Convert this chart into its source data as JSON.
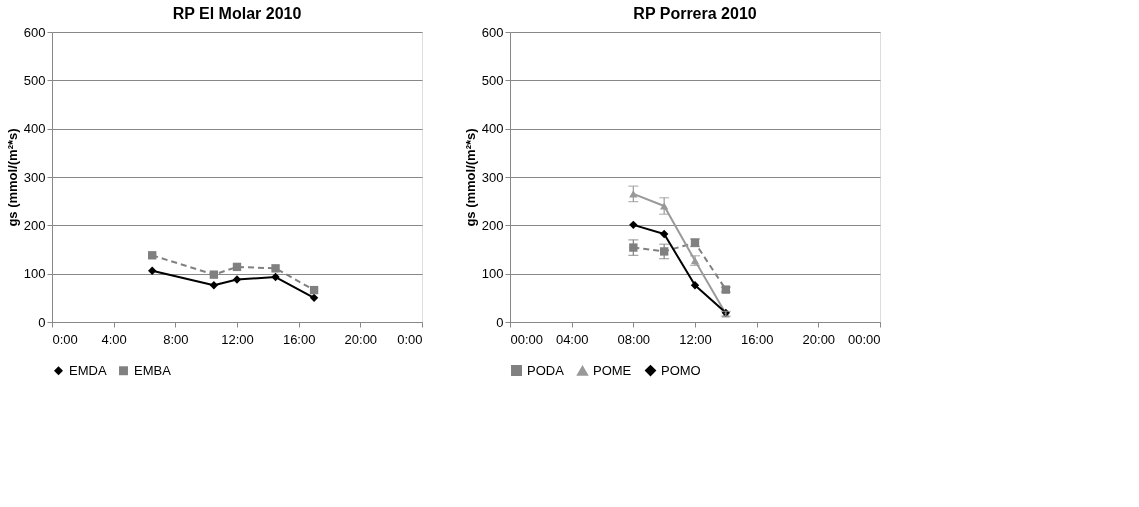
{
  "chart_data": [
    {
      "type": "line",
      "title": "RP El Molar 2010",
      "ylabel": "gs (mmol/(m²*s)",
      "xlim": [
        0,
        24
      ],
      "ylim": [
        0,
        600
      ],
      "xticks": [
        {
          "value": 0,
          "label": "0:00"
        },
        {
          "value": 4,
          "label": "4:00"
        },
        {
          "value": 8,
          "label": "8:00"
        },
        {
          "value": 12,
          "label": "12:00"
        },
        {
          "value": 16,
          "label": "16:00"
        },
        {
          "value": 20,
          "label": "20:00"
        },
        {
          "value": 24,
          "label": "0:00"
        }
      ],
      "yticks": [
        0,
        100,
        200,
        300,
        400,
        500,
        600
      ],
      "grid": "y",
      "legend": "bottom",
      "series": [
        {
          "name": "EMDA",
          "color": "#000000",
          "marker": "diamond",
          "line_style": "solid",
          "x": [
            6.5,
            10.5,
            12,
            14.5,
            17
          ],
          "values": [
            106,
            76,
            88,
            93,
            50
          ]
        },
        {
          "name": "EMBA",
          "color": "#808080",
          "marker": "square",
          "line_style": "dashed",
          "x": [
            6.5,
            10.5,
            12,
            14.5,
            17
          ],
          "values": [
            138,
            98,
            114,
            111,
            66
          ]
        }
      ]
    },
    {
      "type": "line",
      "title": "RP Porrera 2010",
      "ylabel": "gs (mmol/(m²*s)",
      "xlim": [
        0,
        24
      ],
      "ylim": [
        0,
        600
      ],
      "xticks": [
        {
          "value": 0,
          "label": "00:00"
        },
        {
          "value": 4,
          "label": "04:00"
        },
        {
          "value": 8,
          "label": "08:00"
        },
        {
          "value": 12,
          "label": "12:00"
        },
        {
          "value": 16,
          "label": "16:00"
        },
        {
          "value": 20,
          "label": "20:00"
        },
        {
          "value": 24,
          "label": "00:00"
        }
      ],
      "yticks": [
        0,
        100,
        200,
        300,
        400,
        500,
        600
      ],
      "grid": "y",
      "legend": "bottom",
      "series": [
        {
          "name": "PODA",
          "color": "#808080",
          "marker": "square",
          "line_style": "dashed",
          "x": [
            8,
            10,
            12,
            14
          ],
          "values": [
            154,
            146,
            164,
            67
          ],
          "errors": [
            16,
            15,
            8,
            5
          ]
        },
        {
          "name": "POME",
          "color": "#999999",
          "marker": "triangle",
          "line_style": "solid",
          "x": [
            8,
            10,
            12,
            14
          ],
          "values": [
            265,
            240,
            127,
            17
          ],
          "errors": [
            16,
            17,
            10,
            5
          ]
        },
        {
          "name": "POMO",
          "color": "#000000",
          "marker": "diamond",
          "line_style": "solid",
          "x": [
            8,
            10,
            12,
            14
          ],
          "values": [
            201,
            182,
            76,
            19
          ]
        }
      ]
    }
  ]
}
